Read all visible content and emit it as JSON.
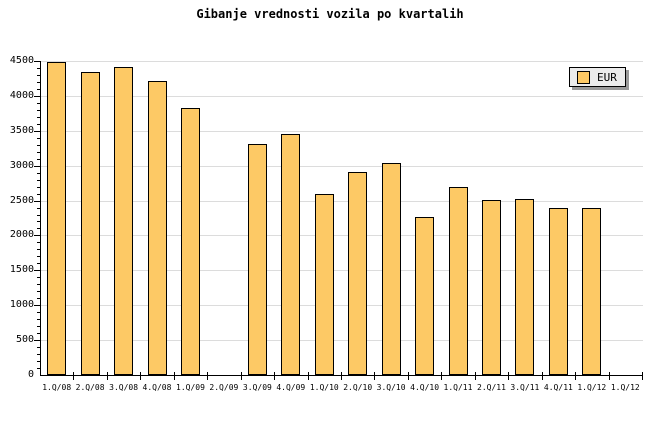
{
  "chart_data": {
    "type": "bar",
    "title": "Gibanje vrednosti vozila po kvartalih",
    "categories": [
      "1.Q/08",
      "2.Q/08",
      "3.Q/08",
      "4.Q/08",
      "1.Q/09",
      "2.Q/09",
      "3.Q/09",
      "4.Q/09",
      "1.Q/10",
      "2.Q/10",
      "3.Q/10",
      "4.Q/10",
      "1.Q/11",
      "2.Q/11",
      "3.Q/11",
      "4.Q/11",
      "1.Q/12",
      "1.Q/12"
    ],
    "series": [
      {
        "name": "EUR",
        "values": [
          4490,
          4340,
          4420,
          4220,
          3820,
          null,
          3310,
          3450,
          2590,
          2910,
          3040,
          2260,
          2700,
          2510,
          2520,
          2390,
          2390,
          null
        ]
      }
    ],
    "xlabel": "",
    "ylabel": "",
    "ylim": [
      0,
      4500
    ],
    "ytick_major": 500,
    "ytick_minor": 100,
    "y_tick_labels": [
      "0",
      "500",
      "1000",
      "1500",
      "2000",
      "2500",
      "3000",
      "3500",
      "4000",
      "4500"
    ],
    "grid": true,
    "legend_position": "top-right",
    "colors": {
      "bar_fill": "#FDC965",
      "bar_border": "#000000",
      "grid": "#DCDCDC",
      "axis": "#000000",
      "legend_bg": "#EBEBEB",
      "legend_shadow": "#999999",
      "background": "#FFFFFF"
    }
  }
}
